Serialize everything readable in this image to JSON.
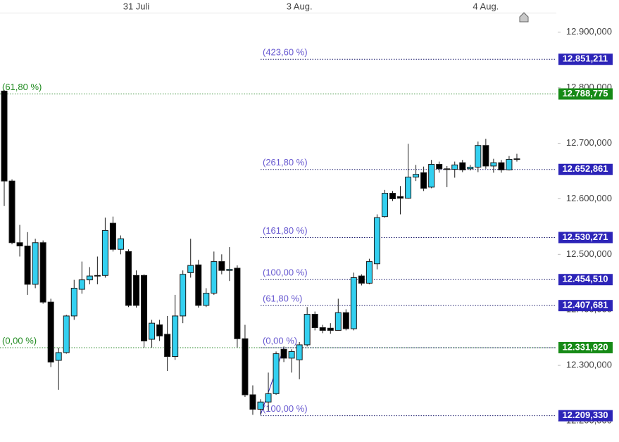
{
  "chart_data": {
    "type": "candlestick",
    "categories": [
      null,
      null,
      null,
      null,
      null,
      null,
      null,
      null,
      null,
      null,
      null,
      null,
      null,
      null,
      null,
      null,
      null,
      "31 Juli",
      null,
      null,
      null,
      null,
      null,
      null,
      null,
      null,
      null,
      null,
      null,
      null,
      null,
      null,
      null,
      null,
      null,
      null,
      null,
      null,
      "3 Aug.",
      null,
      null,
      null,
      null,
      null,
      null,
      null,
      null,
      null,
      null,
      null,
      null,
      null,
      null,
      null,
      null,
      null,
      null,
      null,
      null,
      null,
      null,
      null,
      "4 Aug.",
      null,
      null,
      null,
      null
    ],
    "open": [
      12794000,
      12632000,
      12521000,
      12515000,
      12446000,
      12521000,
      12414000,
      12309000,
      12323000,
      12389000,
      12437000,
      12454000,
      12461000,
      12462000,
      12556000,
      12509000,
      12505000,
      12462000,
      12462000,
      12347000,
      12373000,
      12356000,
      12316000,
      12389000,
      12467000,
      12481000,
      12408000,
      12430000,
      12487000,
      12471000,
      12475000,
      12348000,
      12247000,
      12221000,
      12234000,
      12249000,
      12329000,
      12313000,
      12310000,
      12337000,
      12392000,
      12368000,
      12367000,
      12363000,
      12395000,
      12366000,
      12461000,
      12448000,
      12483000,
      12568000,
      12610000,
      12604000,
      12601000,
      12639000,
      12647000,
      12621000,
      12662000,
      12654000,
      12653000,
      12665000,
      12654000,
      12657000,
      12696000,
      12659000,
      12665000,
      12652000,
      12672000
    ],
    "high": [
      12796000,
      12635000,
      12553000,
      12540000,
      12528000,
      12525000,
      12420000,
      12332000,
      12391000,
      12454000,
      12487000,
      12477000,
      12496000,
      12566000,
      12568000,
      12534000,
      12509000,
      12471000,
      12464000,
      12382000,
      12382000,
      12389000,
      12427000,
      12471000,
      12528000,
      12490000,
      12439000,
      12505000,
      12500000,
      12513000,
      12480000,
      12373000,
      12264000,
      12239000,
      12287000,
      12325000,
      12334000,
      12329000,
      12342000,
      12405000,
      12397000,
      12373000,
      12376000,
      12420000,
      12401000,
      12467000,
      12464000,
      12492000,
      12572000,
      12616000,
      12614000,
      12623000,
      12699000,
      12661000,
      12658000,
      12670000,
      12667000,
      12659000,
      12667000,
      12670000,
      12661000,
      12703000,
      12708000,
      12672000,
      12670000,
      12677000,
      12681000
    ],
    "low": [
      12587000,
      12518000,
      12496000,
      12427000,
      12439000,
      12411000,
      12297000,
      12256000,
      12321000,
      12382000,
      12429000,
      12446000,
      12446000,
      12458000,
      12505000,
      12500000,
      12405000,
      12404000,
      12332000,
      12332000,
      12344000,
      12290000,
      12310000,
      12376000,
      12458000,
      12404000,
      12405000,
      12427000,
      12464000,
      12452000,
      12332000,
      12243000,
      12211000,
      12211000,
      12218000,
      12247000,
      12306000,
      12287000,
      12275000,
      12334000,
      12363000,
      12358000,
      12357000,
      12363000,
      12363000,
      12363000,
      12444000,
      12446000,
      12473000,
      12566000,
      12596000,
      12572000,
      12600000,
      12632000,
      12614000,
      12619000,
      12647000,
      12621000,
      12638000,
      12648000,
      12651000,
      12648000,
      12654000,
      12647000,
      12647000,
      12651000,
      12667000
    ],
    "close": [
      12632000,
      12521000,
      12515000,
      12446000,
      12521000,
      12414000,
      12306000,
      12323000,
      12389000,
      12439000,
      12454000,
      12461000,
      12462000,
      12543000,
      12509000,
      12528000,
      12408000,
      12408000,
      12344000,
      12376000,
      12353000,
      12316000,
      12389000,
      12464000,
      12480000,
      12408000,
      12430000,
      12487000,
      12471000,
      12473000,
      12348000,
      12247000,
      12221000,
      12234000,
      12249000,
      12321000,
      12313000,
      12325000,
      12337000,
      12392000,
      12368000,
      12363000,
      12363000,
      12395000,
      12366000,
      12458000,
      12448000,
      12487000,
      12566000,
      12610000,
      12600000,
      12601000,
      12639000,
      12644000,
      12619000,
      12662000,
      12654000,
      12653000,
      12661000,
      12652000,
      12657000,
      12696000,
      12659000,
      12665000,
      12652000,
      12671000,
      12672000
    ],
    "up_color": "#33d0f0",
    "down_color": "#000000",
    "outline_color": "#1a1a1a",
    "ylim": [
      12162000,
      12958000
    ],
    "yticks": [
      {
        "value": 12200000,
        "label": "12.200,000"
      },
      {
        "value": 12300000,
        "label": "12.300,000"
      },
      {
        "value": 12400000,
        "label": "12.400,000"
      },
      {
        "value": 12500000,
        "label": "12.500,000"
      },
      {
        "value": 12600000,
        "label": "12.600,000"
      },
      {
        "value": 12700000,
        "label": "12.700,000"
      },
      {
        "value": 12800000,
        "label": "12.800,000"
      },
      {
        "value": 12900000,
        "label": "12.900,000"
      }
    ],
    "grid": false,
    "fibonacci": [
      {
        "color": "#1f8a1f",
        "line_color": "#2e8b2e",
        "tag_color": "#168a16",
        "levels": [
          {
            "label": "(61,80 %)",
            "value": 12788775,
            "value_label": "12.788,775"
          },
          {
            "label": "(0,00 %)",
            "value": 12331920,
            "value_label": "12.331,920"
          }
        ]
      },
      {
        "color": "#6657d0",
        "line_color": "#1e1e6e",
        "tag_color": "#2c24b8",
        "levels": [
          {
            "label": "(423,60 %)",
            "value": 12851211,
            "value_label": "12.851,211"
          },
          {
            "label": "(261,80 %)",
            "value": 12652861,
            "value_label": "12.652,861"
          },
          {
            "label": "(161,80 %)",
            "value": 12530271,
            "value_label": "12.530,271"
          },
          {
            "label": "(100,00 %)",
            "value": 12454510,
            "value_label": "12.454,510"
          },
          {
            "label": "(61,80 %)",
            "value": 12407681,
            "value_label": "12.407,681"
          },
          {
            "label": "(0,00 %)",
            "value": 12331920
          },
          {
            "label": "(100,00 %)",
            "value": 12209330,
            "value_label": "12.209,330"
          }
        ]
      }
    ]
  }
}
